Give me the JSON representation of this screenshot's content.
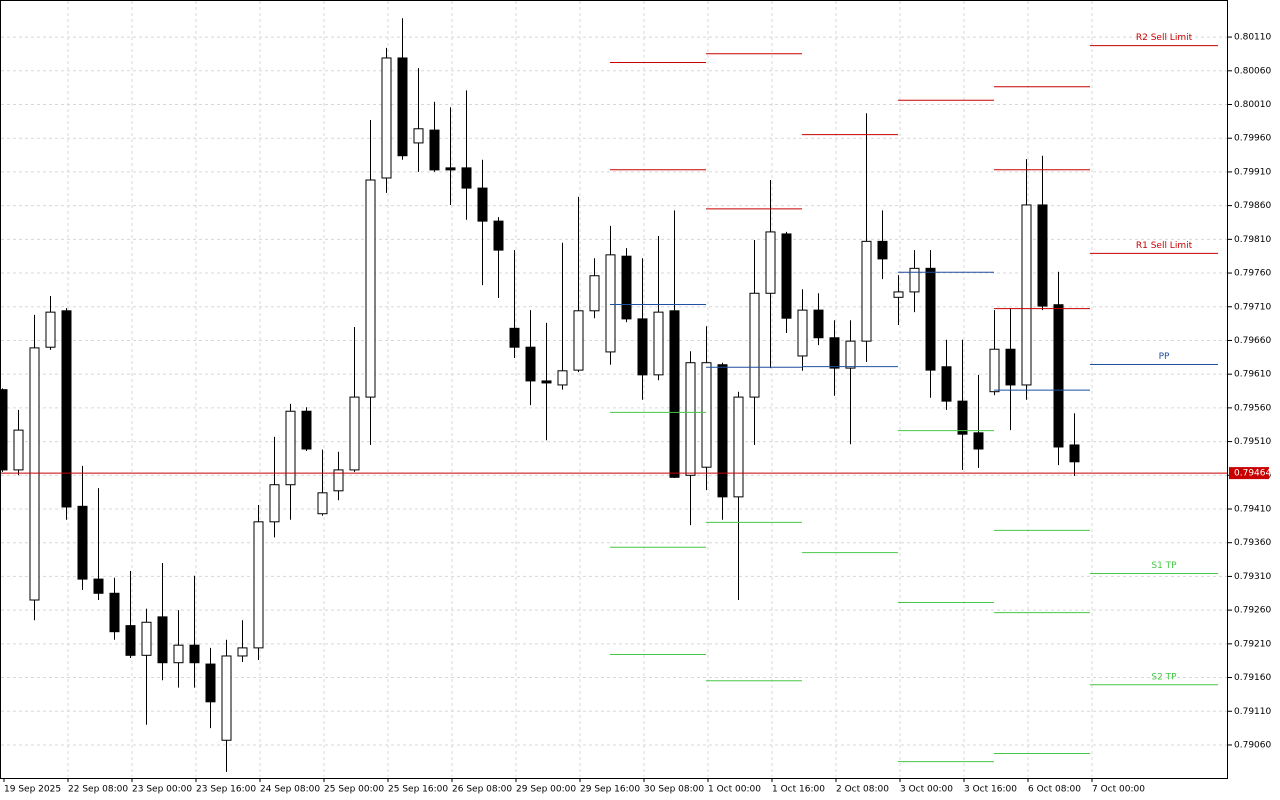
{
  "chart_data": {
    "type": "candlestick",
    "categories": [
      "19 Sep 2025",
      null,
      null,
      null,
      "22 Sep 08:00",
      null,
      null,
      null,
      "23 Sep 00:00",
      null,
      null,
      null,
      "23 Sep 16:00",
      null,
      null,
      null,
      "24 Sep 08:00",
      null,
      null,
      null,
      "25 Sep 00:00",
      null,
      null,
      null,
      "25 Sep 16:00",
      null,
      null,
      null,
      "26 Sep 08:00",
      null,
      null,
      null,
      "29 Sep 00:00",
      null,
      null,
      null,
      "29 Sep 16:00",
      null,
      null,
      null,
      "30 Sep 08:00",
      null,
      null,
      null,
      "1 Oct 00:00",
      null,
      null,
      null,
      "1 Oct 16:00",
      null,
      null,
      null,
      "2 Oct 08:00",
      null,
      null,
      null,
      "3 Oct 00:00",
      null,
      null,
      null,
      "3 Oct 16:00",
      null,
      null,
      null,
      "6 Oct 08:00",
      null,
      null,
      null,
      "7 Oct 00:00"
    ],
    "open": [
      0.79587,
      0.79468,
      0.79275,
      0.7965,
      0.79704,
      0.79414,
      0.79306,
      0.79285,
      0.79237,
      0.79193,
      0.7925,
      0.79182,
      0.79208,
      0.7918,
      0.79067,
      0.79192,
      0.79204,
      0.79391,
      0.79446,
      0.79555,
      0.79403,
      0.79437,
      0.79468,
      0.79576,
      0.79901,
      0.80079,
      0.79953,
      0.79972,
      0.79916,
      0.79916,
      0.79886,
      0.79837,
      0.79678,
      0.7965,
      0.796,
      0.79594,
      0.79616,
      0.79704,
      0.79643,
      0.79785,
      0.79692,
      0.79609,
      0.79704,
      0.7946,
      0.79472,
      0.79624,
      0.79428,
      0.79576,
      0.7973,
      0.79818,
      0.79637,
      0.79705,
      0.79664,
      0.79619,
      0.79659,
      0.79807,
      0.79724,
      0.79732,
      0.79767,
      0.79621,
      0.7957,
      0.79523,
      0.79584,
      0.79647,
      0.79594,
      0.79861,
      0.79713,
      0.79505,
      null
    ],
    "high": [
      0.79589,
      0.79557,
      0.79698,
      0.79726,
      0.79708,
      0.79474,
      0.79441,
      0.79308,
      0.79318,
      0.79262,
      0.7933,
      0.7926,
      0.79311,
      0.79204,
      0.79216,
      0.79245,
      0.79416,
      0.79517,
      0.79566,
      0.79561,
      0.79498,
      0.79495,
      0.7968,
      0.79987,
      0.80094,
      0.80138,
      0.80064,
      0.80014,
      0.80006,
      0.80031,
      0.79928,
      0.79843,
      0.79794,
      0.79705,
      0.79686,
      0.79805,
      0.79873,
      0.79782,
      0.7983,
      0.79797,
      0.79782,
      0.79815,
      0.79853,
      0.79644,
      0.79681,
      0.79627,
      0.79584,
      0.79809,
      0.79898,
      0.79821,
      0.79736,
      0.7973,
      0.7969,
      0.7969,
      0.79997,
      0.79853,
      0.79757,
      0.79794,
      0.79794,
      0.79661,
      0.79661,
      0.79609,
      0.79705,
      0.79708,
      0.79929,
      0.79934,
      0.79762,
      0.79552,
      null
    ],
    "low": [
      0.79465,
      0.7946,
      0.79245,
      0.79646,
      0.79394,
      0.7929,
      0.79275,
      0.79216,
      0.79189,
      0.7909,
      0.79156,
      0.79145,
      0.79145,
      0.79085,
      0.7902,
      0.79183,
      0.79186,
      0.79368,
      0.79394,
      0.79496,
      0.794,
      0.79423,
      0.79465,
      0.79505,
      0.79879,
      0.79928,
      0.7991,
      0.7991,
      0.79861,
      0.79839,
      0.79742,
      0.79723,
      0.79634,
      0.79564,
      0.79512,
      0.79587,
      0.79613,
      0.79693,
      0.79624,
      0.79687,
      0.79572,
      0.79601,
      0.79456,
      0.79386,
      0.79438,
      0.79394,
      0.79275,
      0.79505,
      0.79619,
      0.79671,
      0.79615,
      0.79653,
      0.79578,
      0.79506,
      0.79628,
      0.79751,
      0.79683,
      0.79702,
      0.79575,
      0.79557,
      0.79468,
      0.79471,
      0.79579,
      0.79527,
      0.79572,
      0.79705,
      0.79475,
      0.79459,
      null
    ],
    "close": [
      0.79468,
      0.79527,
      0.79649,
      0.79702,
      0.79413,
      0.79306,
      0.79285,
      0.79228,
      0.79193,
      0.79242,
      0.79182,
      0.79208,
      0.79182,
      0.79124,
      0.79192,
      0.79204,
      0.79391,
      0.79446,
      0.79555,
      0.79499,
      0.79434,
      0.79468,
      0.79576,
      0.79898,
      0.80079,
      0.79934,
      0.79974,
      0.79913,
      0.79913,
      0.79886,
      0.79837,
      0.79794,
      0.7965,
      0.796,
      0.79597,
      0.79615,
      0.79704,
      0.79756,
      0.79787,
      0.79692,
      0.79609,
      0.79702,
      0.79457,
      0.79627,
      0.79627,
      0.79428,
      0.79576,
      0.7973,
      0.79821,
      0.79693,
      0.79705,
      0.79664,
      0.79619,
      0.79659,
      0.79807,
      0.79781,
      0.79732,
      0.79767,
      0.79616,
      0.7957,
      0.79521,
      0.79499,
      0.79647,
      0.79594,
      0.79861,
      0.79711,
      0.79502,
      0.7948,
      null
    ],
    "up_color": "#ffffff",
    "down_color": "#000000",
    "ylim": [
      0.79011,
      0.80165
    ],
    "yticks": [
      {
        "value": 0.8011,
        "label": "0.80110"
      },
      {
        "value": 0.8006,
        "label": "0.80060"
      },
      {
        "value": 0.8001,
        "label": "0.80010"
      },
      {
        "value": 0.7996,
        "label": "0.79960"
      },
      {
        "value": 0.7991,
        "label": "0.79910"
      },
      {
        "value": 0.7986,
        "label": "0.79860"
      },
      {
        "value": 0.7981,
        "label": "0.79810"
      },
      {
        "value": 0.7976,
        "label": "0.79760"
      },
      {
        "value": 0.7971,
        "label": "0.79710"
      },
      {
        "value": 0.7966,
        "label": "0.79660"
      },
      {
        "value": 0.7961,
        "label": "0.79610"
      },
      {
        "value": 0.7956,
        "label": "0.79560"
      },
      {
        "value": 0.7951,
        "label": "0.79510"
      },
      {
        "value": 0.7946,
        "label": "0.79460"
      },
      {
        "value": 0.7941,
        "label": "0.79410"
      },
      {
        "value": 0.7936,
        "label": "0.79360"
      },
      {
        "value": 0.7931,
        "label": "0.79310"
      },
      {
        "value": 0.7926,
        "label": "0.79260"
      },
      {
        "value": 0.7921,
        "label": "0.79210"
      },
      {
        "value": 0.7916,
        "label": "0.79160"
      },
      {
        "value": 0.7911,
        "label": "0.79110"
      },
      {
        "value": 0.7906,
        "label": "0.79060"
      }
    ],
    "grid": true,
    "last_price": 0.79464,
    "last_price_color": "#c80000",
    "pivot_periods": [
      {
        "levels": [
          {
            "value": 0.80073,
            "color": "#c80000"
          },
          {
            "value": 0.79914,
            "color": "#c80000"
          },
          {
            "value": 0.79714,
            "color": "#1e4fa0"
          },
          {
            "value": 0.79554,
            "color": "#46c846"
          },
          {
            "value": 0.79354,
            "color": "#46c846"
          },
          {
            "value": 0.79195,
            "color": "#46c846"
          }
        ]
      },
      {
        "levels": [
          {
            "value": 0.80086,
            "color": "#c80000"
          },
          {
            "value": 0.79856,
            "color": "#c80000"
          },
          {
            "value": 0.79621,
            "color": "#1e4fa0"
          },
          {
            "value": 0.79391,
            "color": "#46c846"
          },
          {
            "value": 0.79156,
            "color": "#46c846"
          }
        ]
      },
      {
        "levels": [
          {
            "value": 0.79966,
            "color": "#c80000"
          },
          {
            "value": 0.79622,
            "color": "#1e4fa0"
          },
          {
            "value": 0.79346,
            "color": "#46c846"
          }
        ]
      },
      {
        "levels": [
          {
            "value": 0.80017,
            "color": "#c80000"
          },
          {
            "value": 0.79762,
            "color": "#1e4fa0"
          },
          {
            "value": 0.79527,
            "color": "#46c846"
          },
          {
            "value": 0.79272,
            "color": "#46c846"
          },
          {
            "value": 0.79036,
            "color": "#46c846"
          }
        ]
      },
      {
        "levels": [
          {
            "value": 0.80037,
            "color": "#c80000"
          },
          {
            "value": 0.79914,
            "color": "#c80000"
          },
          {
            "value": 0.79708,
            "color": "#c80000"
          },
          {
            "value": 0.79587,
            "color": "#1e4fa0"
          },
          {
            "value": 0.79379,
            "color": "#46c846"
          },
          {
            "value": 0.79257,
            "color": "#46c846"
          },
          {
            "value": 0.79048,
            "color": "#46c846"
          }
        ]
      },
      {
        "levels": [
          {
            "value": 0.80098,
            "color": "#c80000",
            "label": "R2 Sell Limit"
          },
          {
            "value": 0.7979,
            "color": "#c80000",
            "label": "R1 Sell Limit"
          },
          {
            "value": 0.79625,
            "color": "#1e4fa0",
            "label": "PP"
          },
          {
            "value": 0.79315,
            "color": "#46c846",
            "label": "S1 TP"
          },
          {
            "value": 0.7915,
            "color": "#46c846",
            "label": "S2 TP"
          }
        ]
      }
    ]
  }
}
